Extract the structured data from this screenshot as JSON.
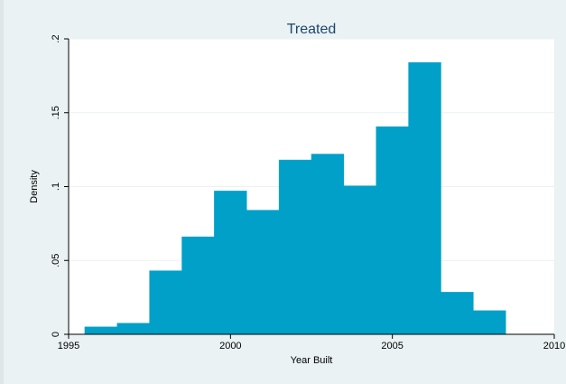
{
  "chart_data": {
    "type": "bar",
    "title": "Treated",
    "xlabel": "Year Built",
    "ylabel": "Density",
    "bin_width": 1,
    "bins": [
      {
        "start": 1995.5,
        "end": 1996.5,
        "density": 0.005
      },
      {
        "start": 1996.5,
        "end": 1997.5,
        "density": 0.0075
      },
      {
        "start": 1997.5,
        "end": 1998.5,
        "density": 0.043
      },
      {
        "start": 1998.5,
        "end": 1999.5,
        "density": 0.066
      },
      {
        "start": 1999.5,
        "end": 2000.5,
        "density": 0.097
      },
      {
        "start": 2000.5,
        "end": 2001.5,
        "density": 0.084
      },
      {
        "start": 2001.5,
        "end": 2002.5,
        "density": 0.118
      },
      {
        "start": 2002.5,
        "end": 2003.5,
        "density": 0.122
      },
      {
        "start": 2003.5,
        "end": 2004.5,
        "density": 0.1005
      },
      {
        "start": 2004.5,
        "end": 2005.5,
        "density": 0.1405
      },
      {
        "start": 2005.5,
        "end": 2006.5,
        "density": 0.184
      },
      {
        "start": 2006.5,
        "end": 2007.5,
        "density": 0.0285
      },
      {
        "start": 2007.5,
        "end": 2008.5,
        "density": 0.016
      }
    ],
    "xlim": [
      1995,
      2010
    ],
    "ylim": [
      0,
      0.2
    ],
    "x_ticks": [
      {
        "value": 1995,
        "label": "1995"
      },
      {
        "value": 2000,
        "label": "2000"
      },
      {
        "value": 2005,
        "label": "2005"
      },
      {
        "value": 2010,
        "label": "2010"
      }
    ],
    "y_ticks": [
      {
        "value": 0,
        "label": "0"
      },
      {
        "value": 0.05,
        "label": ".05"
      },
      {
        "value": 0.1,
        "label": ".1"
      },
      {
        "value": 0.15,
        "label": ".15"
      },
      {
        "value": 0.2,
        "label": ".2"
      }
    ],
    "grid": true,
    "colors": {
      "bar": "#00a0c8",
      "title": "#1a476f",
      "outer_background": "#eaf2f3",
      "plot_background": "#ffffff",
      "grid": "#eaf2f3"
    }
  }
}
